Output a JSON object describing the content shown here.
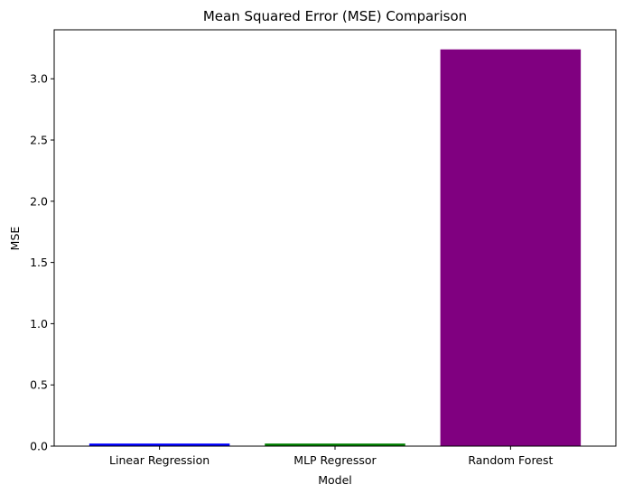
{
  "chart_data": {
    "type": "bar",
    "title": "Mean Squared Error (MSE) Comparison",
    "xlabel": "Model",
    "ylabel": "MSE",
    "categories": [
      "Linear Regression",
      "MLP Regressor",
      "Random Forest"
    ],
    "values": [
      0.021,
      0.021,
      3.24
    ],
    "colors": [
      "#0000ff",
      "#008000",
      "#800080"
    ],
    "ylim": [
      0,
      3.4
    ],
    "yticks": [
      0.0,
      0.5,
      1.0,
      1.5,
      2.0,
      2.5,
      3.0
    ],
    "ytick_labels": [
      "0.0",
      "0.5",
      "1.0",
      "1.5",
      "2.0",
      "2.5",
      "3.0"
    ],
    "grid": false,
    "legend": "none"
  }
}
